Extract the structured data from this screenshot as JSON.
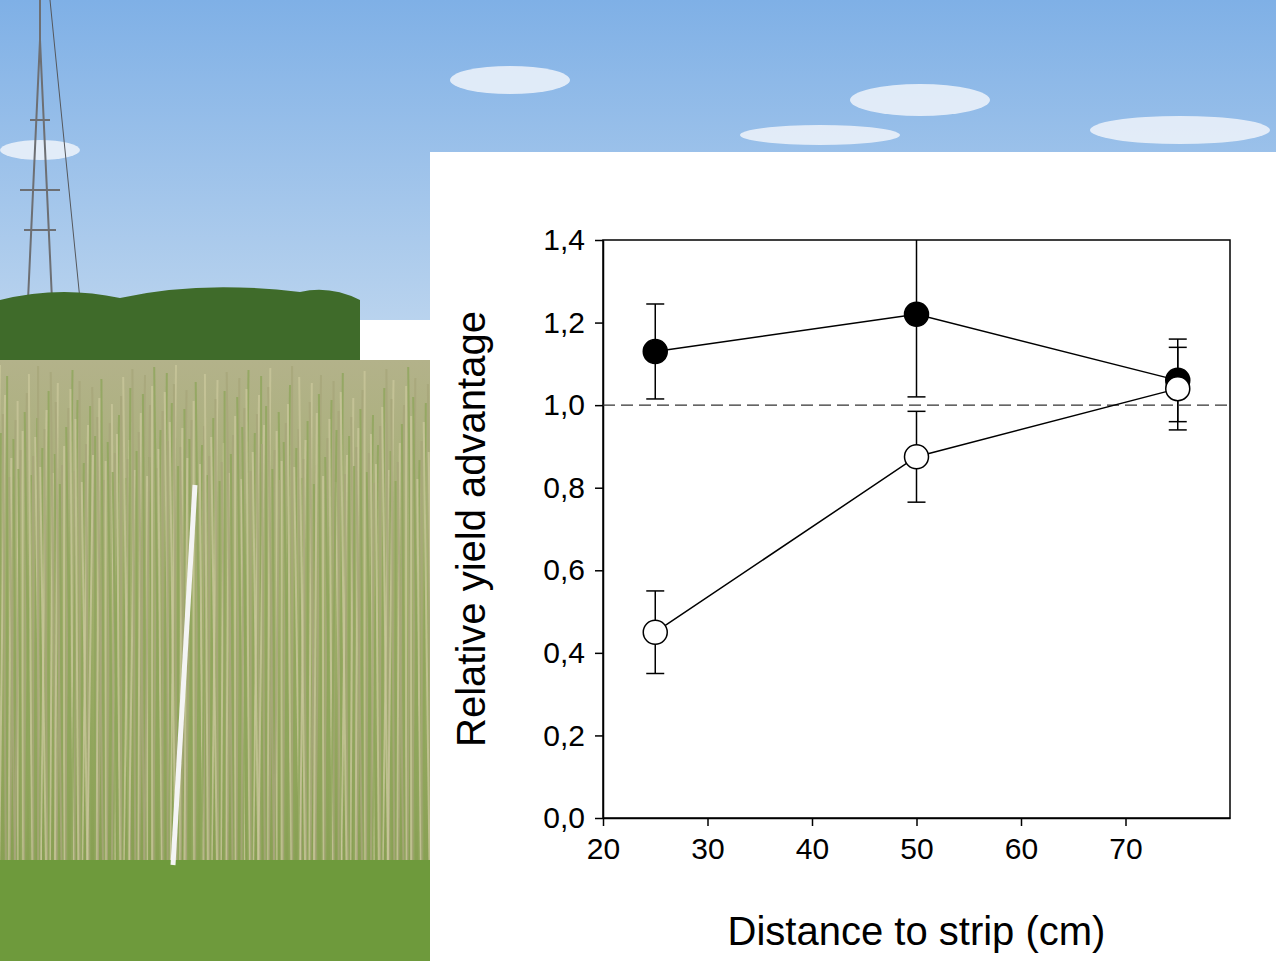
{
  "chart_data": {
    "type": "line",
    "x_label": "Distance to strip (cm)",
    "y_label": "Relative yield advantage",
    "x": [
      25,
      50,
      75
    ],
    "xlim": [
      20,
      80
    ],
    "xticks": [
      20,
      30,
      40,
      50,
      60,
      70
    ],
    "ylim": [
      0,
      1.4
    ],
    "yticks": [
      {
        "value": 0,
        "label": "0,0"
      },
      {
        "value": 0.2,
        "label": "0,2"
      },
      {
        "value": 0.4,
        "label": "0,4"
      },
      {
        "value": 0.6,
        "label": "0,6"
      },
      {
        "value": 0.8,
        "label": "0,8"
      },
      {
        "value": 1.0,
        "label": "1,0"
      },
      {
        "value": 1.2,
        "label": "1,2"
      },
      {
        "value": 1.4,
        "label": "1,4"
      }
    ],
    "reference_line": 1.0,
    "grid": false,
    "series": [
      {
        "color": "#000000",
        "marker": "filled",
        "values": [
          1.13,
          1.22,
          1.06
        ],
        "errors": [
          0.115,
          0.2,
          0.1
        ]
      },
      {
        "color": "#000000",
        "marker": "open",
        "values": [
          0.45,
          0.875,
          1.04
        ],
        "errors": [
          0.1,
          0.11,
          0.1
        ]
      }
    ]
  }
}
